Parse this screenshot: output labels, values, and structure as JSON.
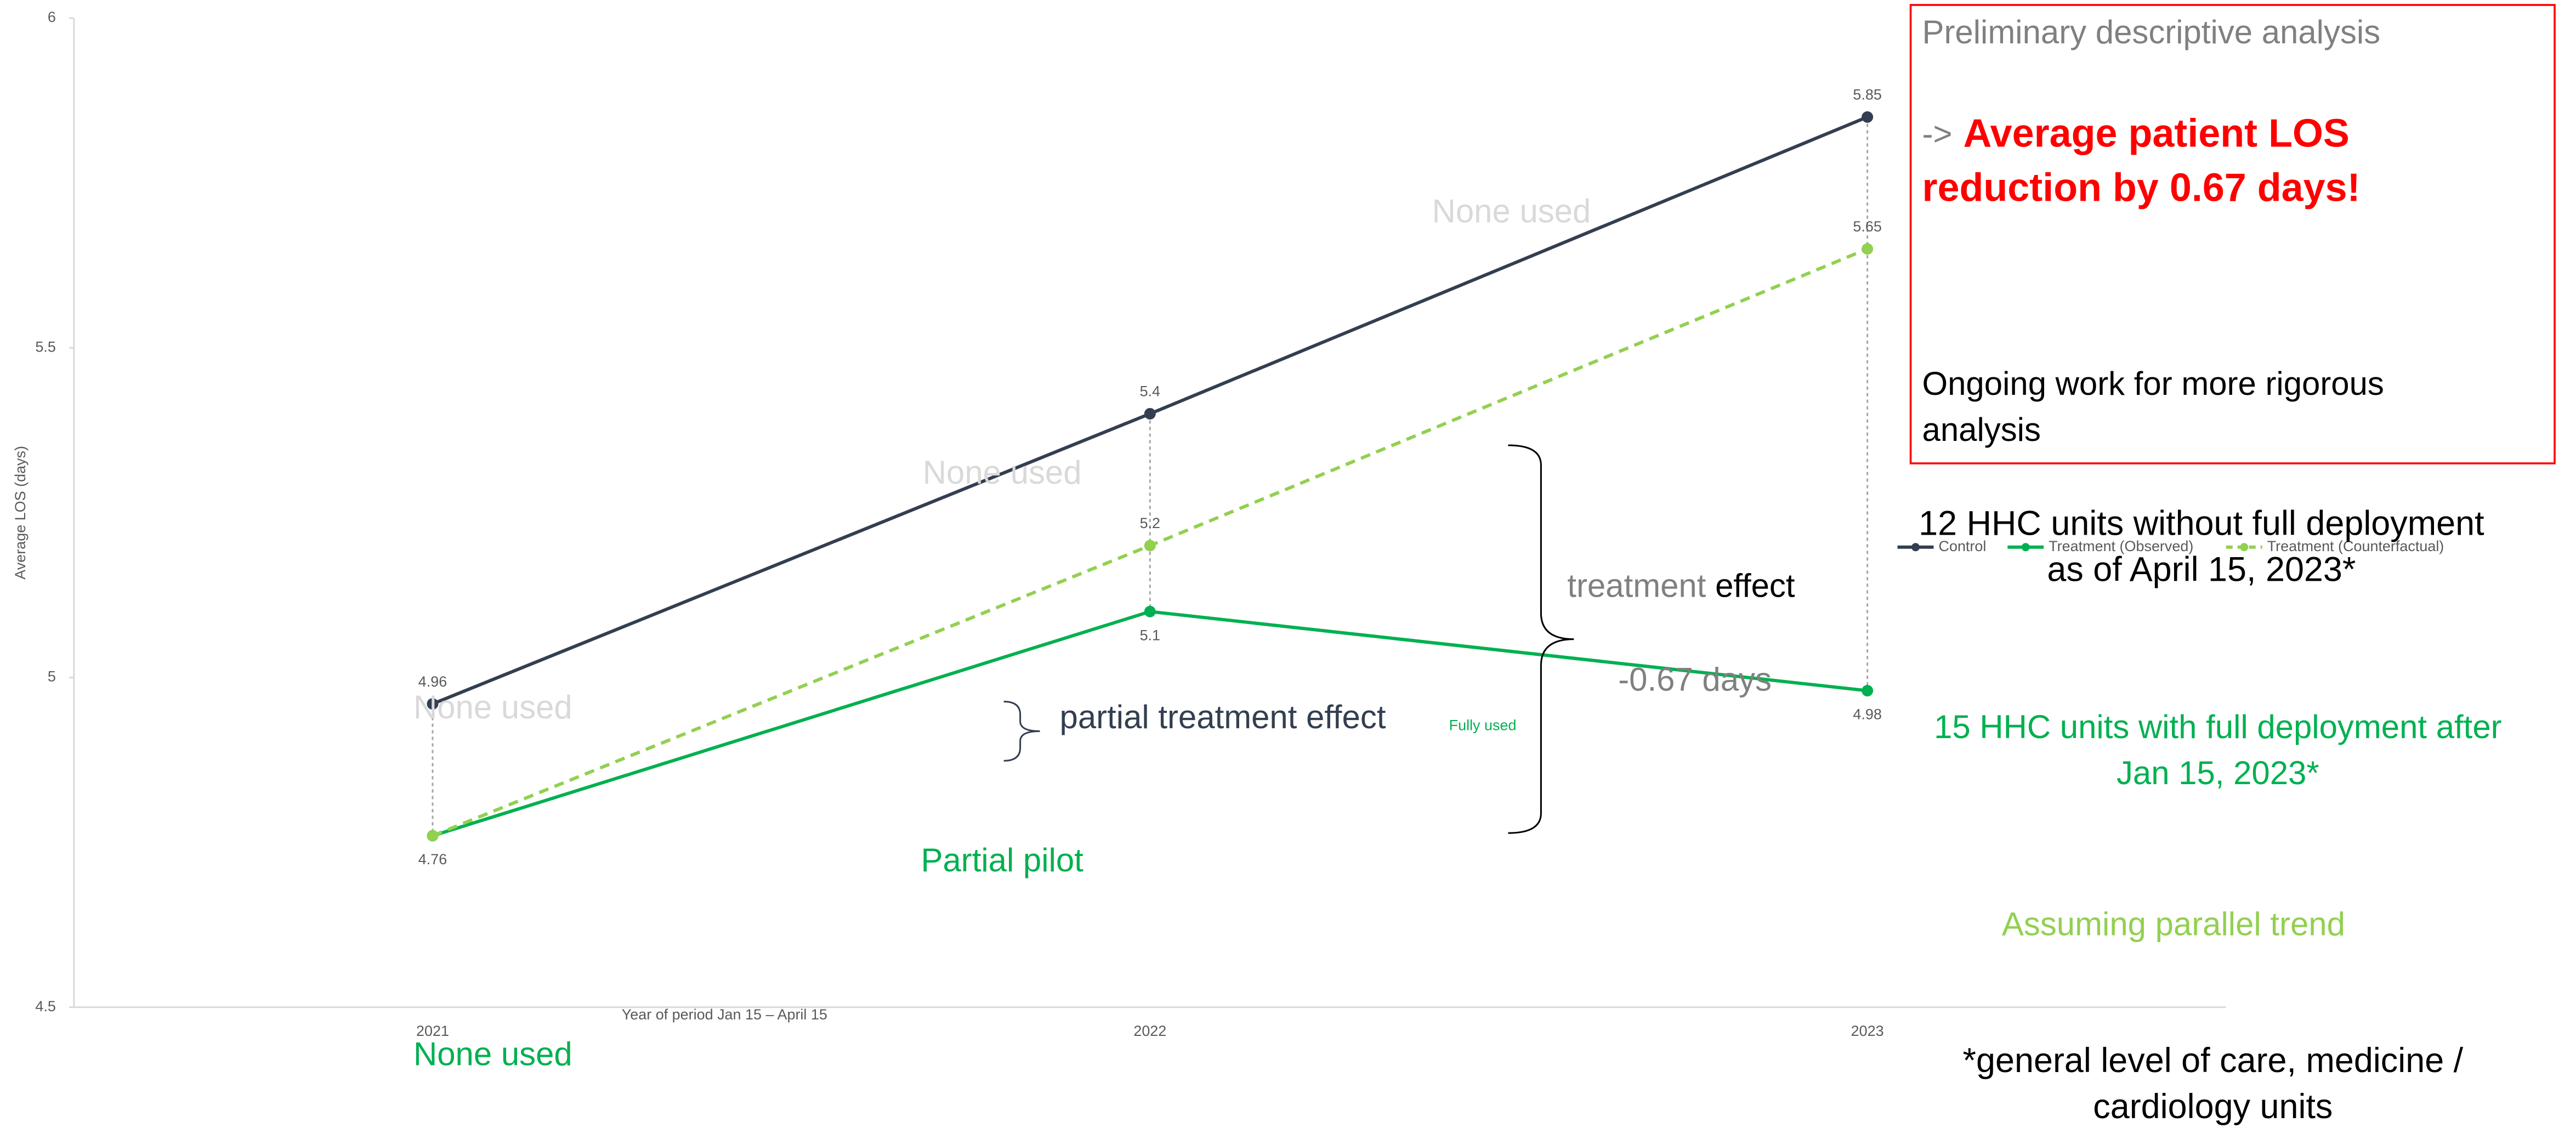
{
  "chart_data": {
    "type": "line",
    "y_label": "Average LOS (days)",
    "x_label": "Year of period Jan 15 – April 15",
    "categories": [
      "2021",
      "2022",
      "2023"
    ],
    "series": [
      {
        "name": "Control",
        "color": "#333f50",
        "dashed": false,
        "values": [
          4.96,
          5.4,
          5.85
        ]
      },
      {
        "name": "Treatment (Observed)",
        "color": "#00b050",
        "dashed": false,
        "values": [
          4.76,
          5.1,
          4.98
        ]
      },
      {
        "name": "Treatment (Counterfactual)",
        "color": "#92d050",
        "dashed": true,
        "values": [
          4.76,
          5.2,
          5.65
        ],
        "value_labels": [
          null,
          "5.2",
          "5.65"
        ]
      }
    ],
    "ylim": [
      4.5,
      6
    ],
    "yticks": [
      4.5,
      5,
      5.5,
      6
    ],
    "legend": "right",
    "annotations": {
      "none_used_top": "None used",
      "none_used_mid": "None used",
      "none_used_left": "None used",
      "none_used_bottom": "None used",
      "partial_pilot": "Partial pilot",
      "partial_effect": "partial treatment effect",
      "fully_used": "Fully used",
      "treatment_effect": [
        "treatment",
        "effect"
      ],
      "effect_size": "-0.67 days",
      "box_title": "Preliminary descriptive analysis",
      "box_arrow": "->",
      "box_highlight": [
        "Average patient LOS",
        "reduction by 0.67 days!"
      ],
      "box_note": [
        "Ongoing work for more rigorous",
        "analysis"
      ],
      "control_note": [
        "12 HHC units without full deployment",
        "as of April 15, 2023*"
      ],
      "treatment_note": [
        "15 HHC units with full deployment after",
        "Jan 15, 2023*"
      ],
      "assumption": "Assuming parallel trend",
      "footnote": [
        "*general level of care, medicine /",
        "cardiology units"
      ]
    }
  }
}
